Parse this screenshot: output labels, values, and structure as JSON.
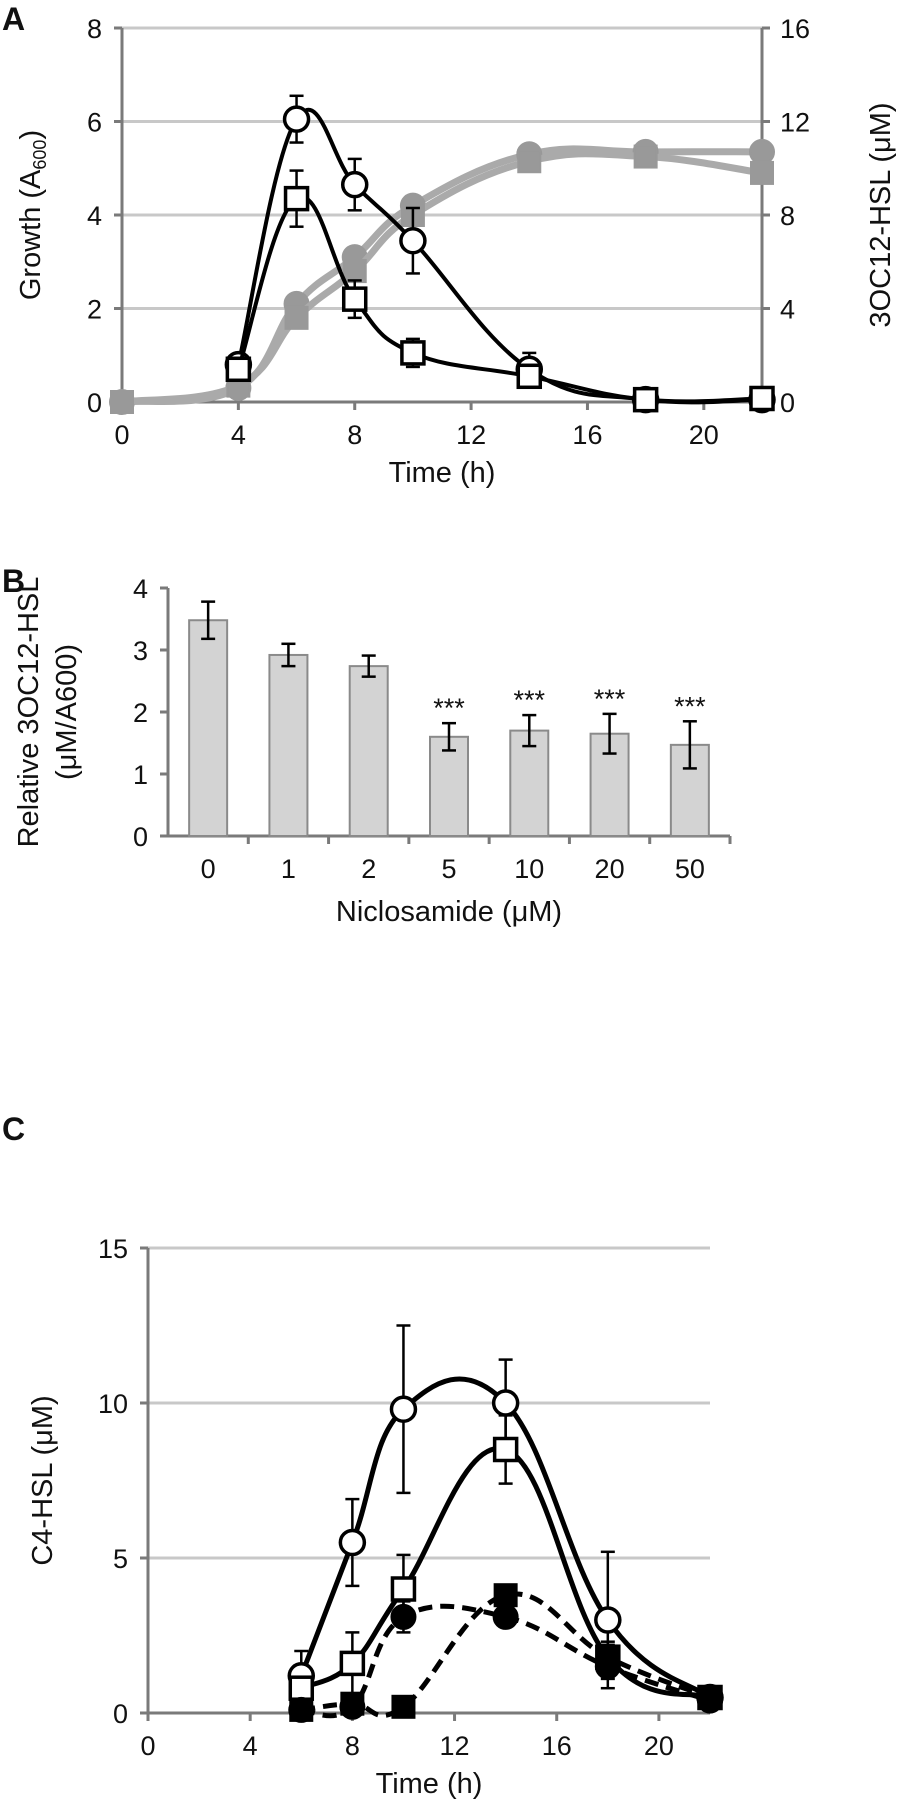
{
  "chart_data": [
    {
      "panel": "A",
      "type": "line",
      "xlabel": "Time (h)",
      "ylabel": "Growth (A600)",
      "ylabel_sub": "600",
      "y2label": "3OC12-HSL (μM)",
      "xlim": [
        0,
        22
      ],
      "ylim": [
        0,
        8
      ],
      "y2lim": [
        0,
        16
      ],
      "xticks": [
        "0",
        "4",
        "8",
        "12",
        "16",
        "20"
      ],
      "yticks": [
        "0",
        "2",
        "4",
        "6",
        "8"
      ],
      "y2ticks": [
        "0",
        "4",
        "8",
        "12",
        "16"
      ],
      "grid": true,
      "series": [
        {
          "name": "growth-circle",
          "axis": "left",
          "marker": "circle",
          "color": "#999999",
          "x": [
            0,
            4,
            6,
            8,
            10,
            14,
            18,
            22
          ],
          "y": [
            0,
            0.3,
            2.1,
            3.1,
            4.2,
            5.3,
            5.35,
            5.35
          ]
        },
        {
          "name": "growth-square",
          "axis": "left",
          "marker": "square",
          "color": "#999999",
          "x": [
            0,
            4,
            6,
            8,
            10,
            14,
            18,
            22
          ],
          "y": [
            0,
            0.35,
            1.8,
            2.8,
            4.0,
            5.15,
            5.25,
            4.9
          ]
        },
        {
          "name": "hsl-circle",
          "axis": "right",
          "marker": "open-circle",
          "color": "#000000",
          "x": [
            4,
            6,
            8,
            10,
            14,
            18,
            22
          ],
          "y": [
            1.6,
            12.1,
            9.3,
            6.9,
            1.4,
            0.1,
            0.1
          ],
          "err": [
            0.2,
            1.0,
            1.1,
            1.4,
            0.7,
            0.1,
            0.1
          ]
        },
        {
          "name": "hsl-square",
          "axis": "right",
          "marker": "open-square",
          "color": "#000000",
          "x": [
            4,
            6,
            8,
            10,
            14,
            18,
            22
          ],
          "y": [
            1.4,
            8.7,
            4.4,
            2.1,
            1.1,
            0.1,
            0.15
          ],
          "err": [
            0.2,
            1.2,
            0.8,
            0.6,
            0.3,
            0.1,
            0.1
          ]
        }
      ]
    },
    {
      "panel": "B",
      "type": "bar",
      "xlabel": "Niclosamide (μM)",
      "ylabel": "Relative 3OC12-HSL",
      "ylabel2": "(μM/A600)",
      "categories": [
        "0",
        "1",
        "2",
        "5",
        "10",
        "20",
        "50"
      ],
      "values": [
        3.48,
        2.92,
        2.74,
        1.6,
        1.7,
        1.65,
        1.47
      ],
      "errors": [
        0.3,
        0.18,
        0.17,
        0.22,
        0.25,
        0.32,
        0.38
      ],
      "annotations": [
        "",
        "",
        "",
        "***",
        "***",
        "***",
        "***"
      ],
      "ylim": [
        0,
        4
      ],
      "yticks": [
        "0",
        "1",
        "2",
        "3",
        "4"
      ],
      "bar_color": "#d3d3d3"
    },
    {
      "panel": "C",
      "type": "line",
      "xlabel": "Time (h)",
      "ylabel": "C4-HSL (μM)",
      "xlim": [
        0,
        22
      ],
      "ylim": [
        0,
        15
      ],
      "xticks": [
        "0",
        "4",
        "8",
        "12",
        "16",
        "20"
      ],
      "yticks": [
        "0",
        "5",
        "10",
        "15"
      ],
      "grid": true,
      "series": [
        {
          "name": "open-circle",
          "marker": "open-circle",
          "dash": false,
          "x": [
            6,
            8,
            10,
            14,
            18,
            22
          ],
          "y": [
            1.2,
            5.5,
            9.8,
            10.0,
            3.0,
            0.5
          ],
          "err": [
            0.8,
            1.4,
            2.7,
            1.4,
            2.2,
            0.1
          ]
        },
        {
          "name": "open-square",
          "marker": "open-square",
          "dash": false,
          "x": [
            6,
            8,
            10,
            14,
            18,
            22
          ],
          "y": [
            0.8,
            1.6,
            4.0,
            8.5,
            1.8,
            0.5
          ],
          "err": [
            0.3,
            1.0,
            1.1,
            1.1,
            0.5,
            0.1
          ]
        },
        {
          "name": "filled-circle",
          "marker": "filled-circle",
          "dash": true,
          "x": [
            6,
            8,
            10,
            14,
            18,
            22
          ],
          "y": [
            0.1,
            0.2,
            3.1,
            3.1,
            1.5,
            0.4
          ],
          "err": [
            0.1,
            0.1,
            0.5,
            0.3,
            0.4,
            0.1
          ]
        },
        {
          "name": "filled-square",
          "marker": "filled-square",
          "dash": true,
          "x": [
            6,
            8,
            10,
            14,
            18,
            22
          ],
          "y": [
            0.1,
            0.3,
            0.2,
            3.8,
            1.8,
            0.5
          ],
          "err": [
            0.1,
            0.1,
            0.1,
            0.3,
            0.4,
            0.1
          ]
        }
      ]
    }
  ]
}
